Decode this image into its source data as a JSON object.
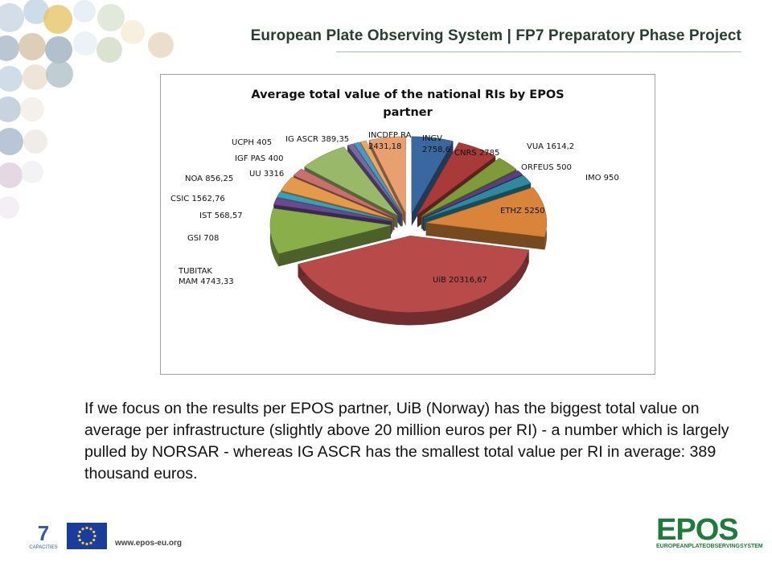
{
  "header": {
    "title": "European Plate Observing System | FP7 Preparatory Phase Project"
  },
  "chart_data": {
    "type": "pie",
    "title_lines": [
      "Average total value of the national RIs by EPOS",
      "partner"
    ],
    "labels": [
      "INGV",
      "CNRS",
      "VUA",
      "ORFEUS",
      "IMO",
      "ETHZ",
      "UiB",
      "TUBITAK MAM",
      "GSI",
      "IST",
      "CSIC",
      "NOA",
      "UU",
      "IGF PAS",
      "UCPH",
      "IG ASCR",
      "INCDFP RA"
    ],
    "values": [
      2758.6,
      2785,
      1614.2,
      500,
      950,
      5250,
      20316.67,
      4743.33,
      708,
      568.57,
      1562.76,
      856.25,
      3316,
      400,
      405,
      389.35,
      2431.18
    ],
    "value_labels": [
      "2758,6",
      "2785",
      "1614,2",
      "500",
      "950",
      "5250",
      "20316,67",
      "4743,33",
      "708",
      "568,57",
      "1562,76",
      "856,25",
      "3316",
      "400",
      "405",
      "389,35",
      "2431,18"
    ],
    "label_texts": [
      "INGV 2758,6",
      "CNRS 2785",
      "VUA 1614,2",
      "ORFEUS 500",
      "IMO 950",
      "ETHZ 5250",
      "UiB 20316,67",
      "TUBITAK MAM 4743,33",
      "GSI 708",
      "IST 568,57",
      "CSIC 1562,76",
      "NOA 856,25",
      "UU 3316",
      "IGF PAS 400",
      "UCPH 405",
      "IG ASCR 389,35",
      "INCDFP RA 2431,18"
    ],
    "colors": [
      "#3a679f",
      "#a83a3a",
      "#7f9a3a",
      "#5b3f83",
      "#2f8aa0",
      "#d9843a",
      "#b84a4a",
      "#8aae4a",
      "#6a4a8e",
      "#3aa0b8",
      "#e39a4a",
      "#c8706e",
      "#9ab86a",
      "#7a67a0",
      "#4a9ac0",
      "#e8a86a",
      "#e8a070"
    ],
    "style": "3d-exploded",
    "legend": "none"
  },
  "body": {
    "paragraph": "If we focus on the results per EPOS partner, UiB (Norway) has the biggest total value on average per infrastructure (slightly above 20 million euros per RI) - a number which is largely pulled by NORSAR - whereas IG ASCR has the smallest total value per RI in average: 389 thousand euros."
  },
  "footer": {
    "url": "www.epos-eu.org",
    "logo_7_text": "7",
    "capacities_text": "CAPACITIES",
    "epos_word": "EPOS",
    "epos_sub": "EUROPEANPLATEOBSERVINGSYSTEM"
  }
}
